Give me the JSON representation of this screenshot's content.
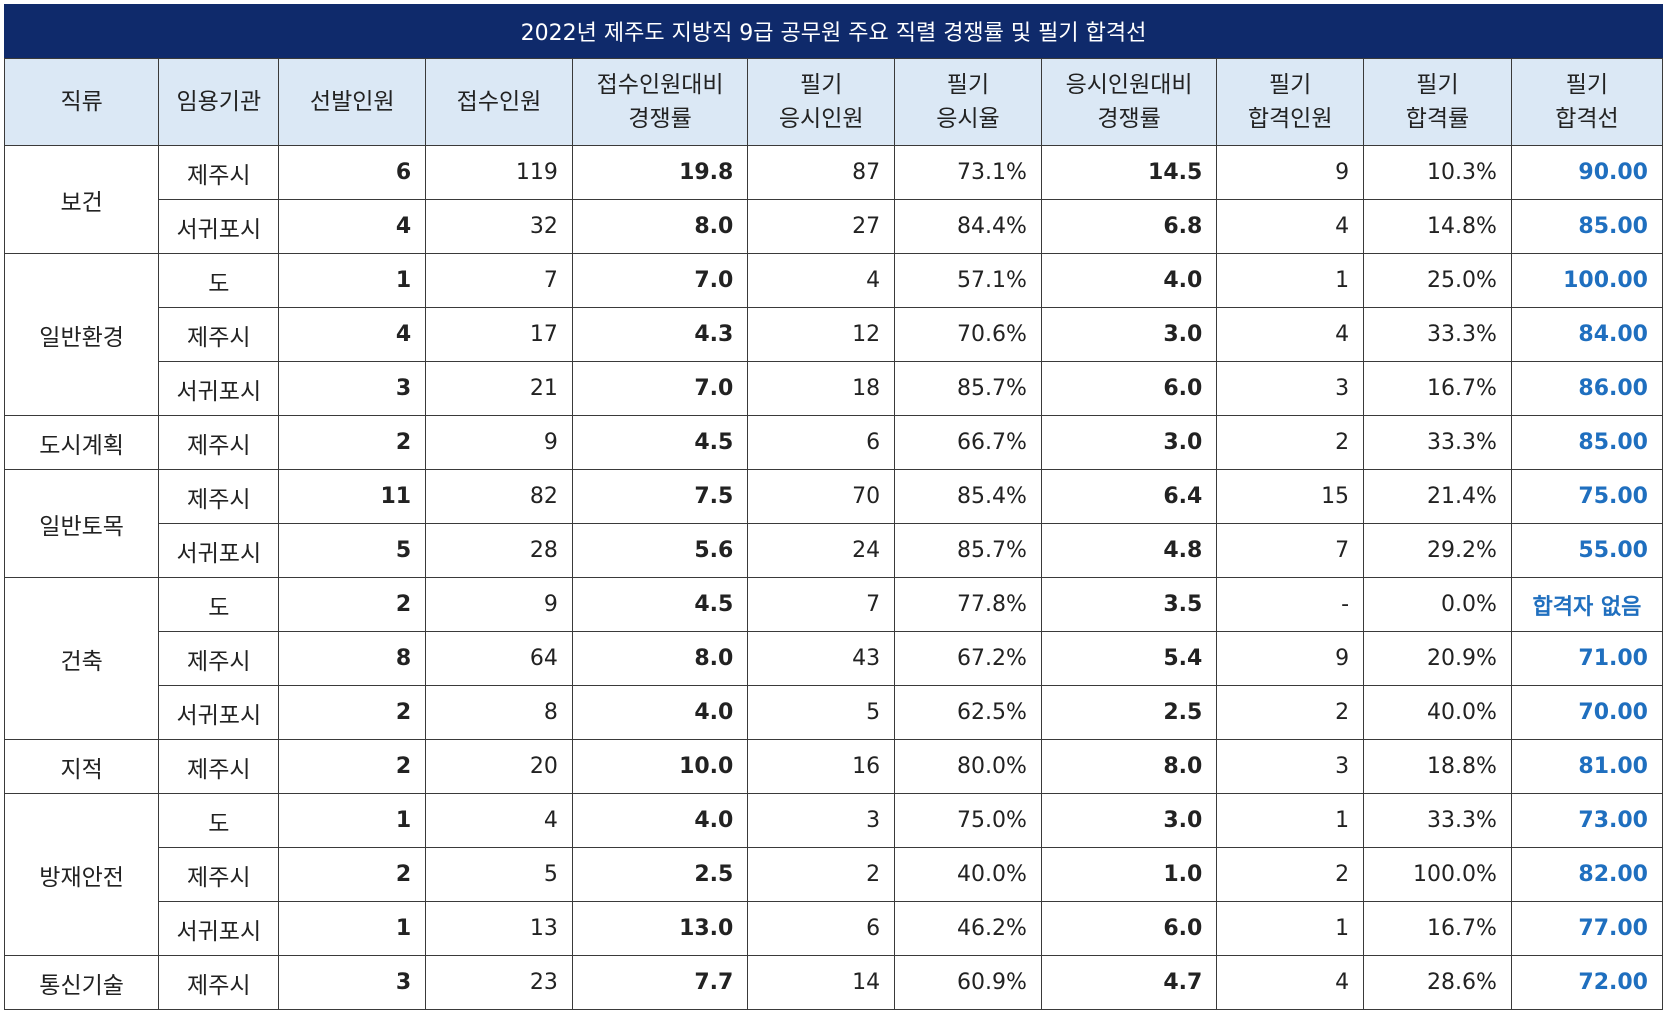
{
  "title": "2022년 제주도 지방직 9급 공무원 주요 직렬 경쟁률 및 필기 합격선",
  "headers": [
    [
      "직류"
    ],
    [
      "임용기관"
    ],
    [
      "선발인원"
    ],
    [
      "접수인원"
    ],
    [
      "접수인원대비",
      "경쟁률"
    ],
    [
      "필기",
      "응시인원"
    ],
    [
      "필기",
      "응시율"
    ],
    [
      "응시인원대비",
      "경쟁률"
    ],
    [
      "필기",
      "합격인원"
    ],
    [
      "필기",
      "합격률"
    ],
    [
      "필기",
      "합격선"
    ]
  ],
  "rows": [
    {
      "category": "보건",
      "rowspan": 2,
      "org": "제주시",
      "selected": "6",
      "applied": "119",
      "apply_ratio": "19.8",
      "exam_takers": "87",
      "exam_rate": "73.1%",
      "taker_ratio": "14.5",
      "passed": "9",
      "pass_rate": "10.3%",
      "cutoff": "90.00"
    },
    {
      "org": "서귀포시",
      "selected": "4",
      "applied": "32",
      "apply_ratio": "8.0",
      "exam_takers": "27",
      "exam_rate": "84.4%",
      "taker_ratio": "6.8",
      "passed": "4",
      "pass_rate": "14.8%",
      "cutoff": "85.00"
    },
    {
      "category": "일반환경",
      "rowspan": 3,
      "org": "도",
      "selected": "1",
      "applied": "7",
      "apply_ratio": "7.0",
      "exam_takers": "4",
      "exam_rate": "57.1%",
      "taker_ratio": "4.0",
      "passed": "1",
      "pass_rate": "25.0%",
      "cutoff": "100.00"
    },
    {
      "org": "제주시",
      "selected": "4",
      "applied": "17",
      "apply_ratio": "4.3",
      "exam_takers": "12",
      "exam_rate": "70.6%",
      "taker_ratio": "3.0",
      "passed": "4",
      "pass_rate": "33.3%",
      "cutoff": "84.00"
    },
    {
      "org": "서귀포시",
      "selected": "3",
      "applied": "21",
      "apply_ratio": "7.0",
      "exam_takers": "18",
      "exam_rate": "85.7%",
      "taker_ratio": "6.0",
      "passed": "3",
      "pass_rate": "16.7%",
      "cutoff": "86.00"
    },
    {
      "category": "도시계획",
      "rowspan": 1,
      "org": "제주시",
      "selected": "2",
      "applied": "9",
      "apply_ratio": "4.5",
      "exam_takers": "6",
      "exam_rate": "66.7%",
      "taker_ratio": "3.0",
      "passed": "2",
      "pass_rate": "33.3%",
      "cutoff": "85.00"
    },
    {
      "category": "일반토목",
      "rowspan": 2,
      "org": "제주시",
      "selected": "11",
      "applied": "82",
      "apply_ratio": "7.5",
      "exam_takers": "70",
      "exam_rate": "85.4%",
      "taker_ratio": "6.4",
      "passed": "15",
      "pass_rate": "21.4%",
      "cutoff": "75.00"
    },
    {
      "org": "서귀포시",
      "selected": "5",
      "applied": "28",
      "apply_ratio": "5.6",
      "exam_takers": "24",
      "exam_rate": "85.7%",
      "taker_ratio": "4.8",
      "passed": "7",
      "pass_rate": "29.2%",
      "cutoff": "55.00"
    },
    {
      "category": "건축",
      "rowspan": 3,
      "org": "도",
      "selected": "2",
      "applied": "9",
      "apply_ratio": "4.5",
      "exam_takers": "7",
      "exam_rate": "77.8%",
      "taker_ratio": "3.5",
      "passed": "-",
      "pass_rate": "0.0%",
      "cutoff": "합격자 없음"
    },
    {
      "org": "제주시",
      "selected": "8",
      "applied": "64",
      "apply_ratio": "8.0",
      "exam_takers": "43",
      "exam_rate": "67.2%",
      "taker_ratio": "5.4",
      "passed": "9",
      "pass_rate": "20.9%",
      "cutoff": "71.00"
    },
    {
      "org": "서귀포시",
      "selected": "2",
      "applied": "8",
      "apply_ratio": "4.0",
      "exam_takers": "5",
      "exam_rate": "62.5%",
      "taker_ratio": "2.5",
      "passed": "2",
      "pass_rate": "40.0%",
      "cutoff": "70.00"
    },
    {
      "category": "지적",
      "rowspan": 1,
      "org": "제주시",
      "selected": "2",
      "applied": "20",
      "apply_ratio": "10.0",
      "exam_takers": "16",
      "exam_rate": "80.0%",
      "taker_ratio": "8.0",
      "passed": "3",
      "pass_rate": "18.8%",
      "cutoff": "81.00"
    },
    {
      "category": "방재안전",
      "rowspan": 3,
      "org": "도",
      "selected": "1",
      "applied": "4",
      "apply_ratio": "4.0",
      "exam_takers": "3",
      "exam_rate": "75.0%",
      "taker_ratio": "3.0",
      "passed": "1",
      "pass_rate": "33.3%",
      "cutoff": "73.00"
    },
    {
      "org": "제주시",
      "selected": "2",
      "applied": "5",
      "apply_ratio": "2.5",
      "exam_takers": "2",
      "exam_rate": "40.0%",
      "taker_ratio": "1.0",
      "passed": "2",
      "pass_rate": "100.0%",
      "cutoff": "82.00"
    },
    {
      "org": "서귀포시",
      "selected": "1",
      "applied": "13",
      "apply_ratio": "13.0",
      "exam_takers": "6",
      "exam_rate": "46.2%",
      "taker_ratio": "6.0",
      "passed": "1",
      "pass_rate": "16.7%",
      "cutoff": "77.00"
    },
    {
      "category": "통신기술",
      "rowspan": 1,
      "org": "제주시",
      "selected": "3",
      "applied": "23",
      "apply_ratio": "7.7",
      "exam_takers": "14",
      "exam_rate": "60.9%",
      "taker_ratio": "4.7",
      "passed": "4",
      "pass_rate": "28.6%",
      "cutoff": "72.00"
    }
  ],
  "colors": {
    "title_bg": "#0f2a6b",
    "header_bg": "#dbe8f5",
    "cutoff_text": "#1f6fbf"
  }
}
